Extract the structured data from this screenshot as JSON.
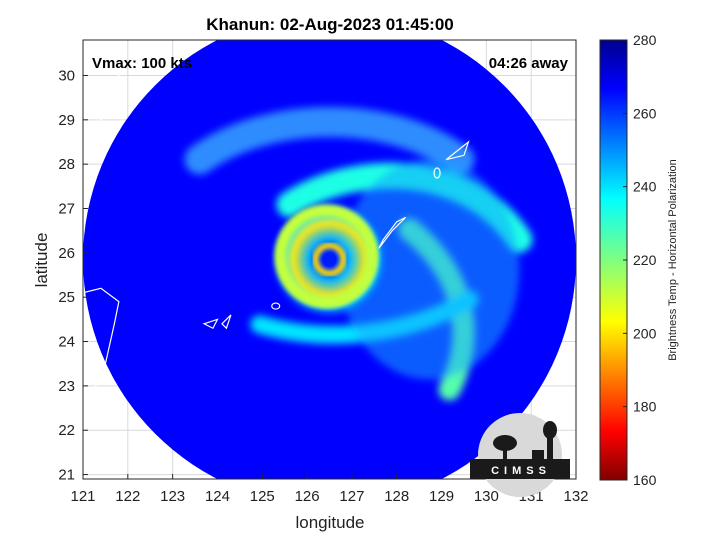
{
  "chart_data": {
    "type": "heatmap",
    "title": "Khanun: 02-Aug-2023 01:45:00",
    "xlabel": "longitude",
    "ylabel": "latitude",
    "xlim": [
      121,
      132
    ],
    "ylim": [
      20.9,
      30.8
    ],
    "xticks": [
      "121",
      "122",
      "123",
      "124",
      "125",
      "126",
      "127",
      "128",
      "129",
      "130",
      "131",
      "132"
    ],
    "yticks": [
      "21",
      "22",
      "23",
      "24",
      "25",
      "26",
      "27",
      "28",
      "29",
      "30"
    ],
    "grid": true,
    "annotations": {
      "vmax": "Vmax: 100 kts",
      "time_away": "04:26 away"
    },
    "colorbar": {
      "label": "Brightness Temp - Horizontal Polarization",
      "range": [
        160,
        280
      ],
      "ticks": [
        "280",
        "260",
        "240",
        "220",
        "200",
        "180",
        "160"
      ],
      "colormap": "jet"
    },
    "storm_center": {
      "lon": 126.5,
      "lat": 25.85
    },
    "swath_center": {
      "lon": 126.5,
      "lat": 25.85
    },
    "swath_radius_deg": 5.5,
    "background_tb": 265,
    "features": [
      {
        "name": "eye",
        "lon": 126.5,
        "lat": 25.85,
        "tb": 262
      },
      {
        "name": "eyewall",
        "lon": 126.45,
        "lat": 25.95,
        "tb": 212
      },
      {
        "name": "northern rainband",
        "lon": 127.8,
        "lat": 26.9,
        "tb": 232
      },
      {
        "name": "eastern rainband",
        "lon": 128.8,
        "lat": 25.8,
        "tb": 225
      },
      {
        "name": "southern rainband",
        "lon": 126.5,
        "lat": 24.5,
        "tb": 238
      }
    ]
  },
  "logo": {
    "text": "CIMSS"
  },
  "colors": {
    "background": "#ffffff",
    "axes_outline": "#262626",
    "grid": "#d9d9d9"
  }
}
